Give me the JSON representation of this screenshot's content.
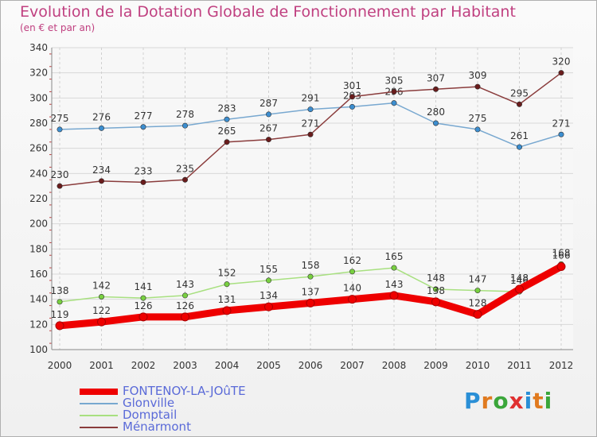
{
  "title": "Evolution de la Dotation Globale de Fonctionnement par Habitant",
  "subtitle": "(en € et par an)",
  "logo": {
    "text": "Proxiti",
    "colors": [
      "#2a8fd6",
      "#e07a1f",
      "#3aa63a",
      "#e03030",
      "#2a8fd6",
      "#e07a1f",
      "#3aa63a"
    ]
  },
  "chart_data": {
    "type": "line",
    "x": [
      "2000",
      "2001",
      "2002",
      "2003",
      "2004",
      "2005",
      "2006",
      "2007",
      "2008",
      "2009",
      "2010",
      "2011",
      "2012"
    ],
    "ylim": [
      100,
      340
    ],
    "yticks": [
      100,
      120,
      140,
      160,
      180,
      200,
      220,
      240,
      260,
      280,
      300,
      320,
      340
    ],
    "grid": true,
    "legend_position": "bottom-left",
    "series": [
      {
        "name": "FONTENOY-LA-JOûTE",
        "color": "#ee0000",
        "marker": "#ee0000",
        "thick": true,
        "values": [
          119,
          122,
          126,
          126,
          131,
          134,
          137,
          140,
          143,
          138,
          128,
          148,
          166
        ]
      },
      {
        "name": "Glonville",
        "color": "#78a8d0",
        "marker": "#3c8ed0",
        "thick": false,
        "values": [
          275,
          276,
          277,
          278,
          283,
          287,
          291,
          293,
          296,
          280,
          275,
          261,
          271
        ]
      },
      {
        "name": "Domptail",
        "color": "#a8e080",
        "marker": "#78d040",
        "thick": false,
        "values": [
          138,
          142,
          141,
          143,
          152,
          155,
          158,
          162,
          165,
          148,
          147,
          146,
          168
        ]
      },
      {
        "name": "Ménarmont",
        "color": "#8a3c3c",
        "marker": "#6a1c1c",
        "thick": false,
        "values": [
          230,
          234,
          233,
          235,
          265,
          267,
          271,
          301,
          305,
          307,
          309,
          295,
          320
        ]
      }
    ]
  }
}
